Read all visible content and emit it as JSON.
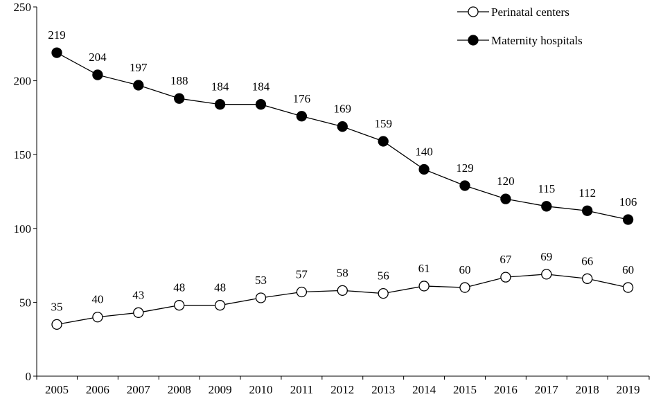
{
  "chart_data": {
    "type": "line",
    "title": "",
    "xlabel": "",
    "ylabel": "",
    "x": [
      "2005",
      "2006",
      "2007",
      "2008",
      "2009",
      "2010",
      "2011",
      "2012",
      "2013",
      "2014",
      "2015",
      "2016",
      "2017",
      "2018",
      "2019"
    ],
    "ylim": [
      0,
      250
    ],
    "yticks": [
      "0",
      "50",
      "100",
      "150",
      "200",
      "250"
    ],
    "grid": false,
    "legend_position": "top-right",
    "series": [
      {
        "name": "Perinatal centers",
        "marker": "open-circle",
        "color": "#000000",
        "fill": "#ffffff",
        "values": [
          35,
          40,
          43,
          48,
          48,
          53,
          57,
          58,
          56,
          61,
          60,
          67,
          69,
          66,
          60
        ],
        "labels": [
          "35",
          "40",
          "43",
          "48",
          "48",
          "53",
          "57",
          "58",
          "56",
          "61",
          "60",
          "67",
          "69",
          "66",
          "60"
        ]
      },
      {
        "name": "Maternity hospitals",
        "marker": "filled-circle",
        "color": "#000000",
        "fill": "#000000",
        "values": [
          219,
          204,
          197,
          188,
          184,
          184,
          176,
          169,
          159,
          140,
          129,
          120,
          115,
          112,
          106
        ],
        "labels": [
          "219",
          "204",
          "197",
          "188",
          "184",
          "184",
          "176",
          "169",
          "159",
          "140",
          "129",
          "120",
          "115",
          "112",
          "106"
        ]
      }
    ]
  }
}
